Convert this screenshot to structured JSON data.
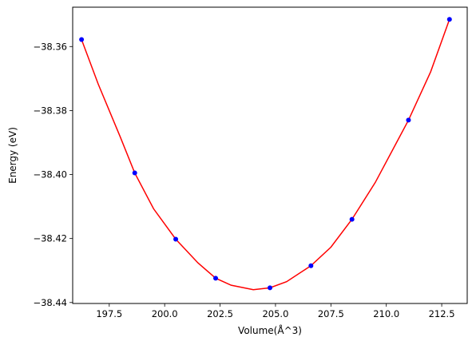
{
  "chart_data": {
    "type": "scatter",
    "title": "",
    "xlabel": "Volume(Å^3)",
    "ylabel": "Energy (eV)",
    "xlim": [
      195.85,
      213.65
    ],
    "ylim": [
      -38.4403,
      -38.3477
    ],
    "grid": false,
    "x_ticks": [
      197.5,
      200.0,
      202.5,
      205.0,
      207.5,
      210.0,
      212.5
    ],
    "x_tick_labels": [
      "197.5",
      "200.0",
      "202.5",
      "205.0",
      "207.5",
      "210.0",
      "212.5"
    ],
    "y_ticks": [
      -38.44,
      -38.42,
      -38.4,
      -38.38,
      -38.36
    ],
    "y_tick_labels": [
      "−38.44",
      "−38.42",
      "−38.40",
      "−38.38",
      "−38.36"
    ],
    "series": [
      {
        "kind": "points",
        "color": "#0000ff",
        "marker": "circle",
        "x": [
          196.25,
          198.65,
          200.5,
          202.3,
          204.75,
          206.6,
          208.45,
          211.0,
          212.85
        ],
        "y": [
          -38.3578,
          -38.3995,
          -38.4202,
          -38.4324,
          -38.4354,
          -38.4285,
          -38.414,
          -38.383,
          -38.3515
        ]
      },
      {
        "kind": "fit-curve",
        "color": "#ff0000",
        "x": [
          196.25,
          197.0,
          198.0,
          198.65,
          199.5,
          200.5,
          201.5,
          202.3,
          203.0,
          204.0,
          204.75,
          205.5,
          206.6,
          207.5,
          208.45,
          209.5,
          210.5,
          211.0,
          212.0,
          212.85
        ],
        "y": [
          -38.3578,
          -38.3717,
          -38.3883,
          -38.3995,
          -38.4107,
          -38.4202,
          -38.4276,
          -38.4324,
          -38.4346,
          -38.436,
          -38.4354,
          -38.4335,
          -38.4285,
          -38.4227,
          -38.414,
          -38.4025,
          -38.3895,
          -38.383,
          -38.3679,
          -38.3515
        ]
      }
    ]
  }
}
